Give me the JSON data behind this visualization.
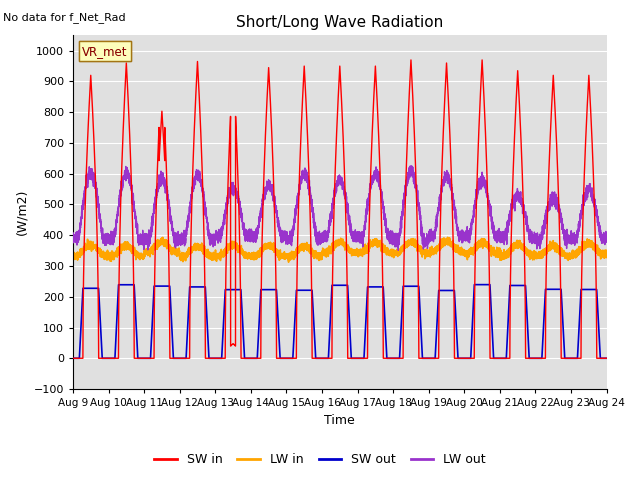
{
  "title": "Short/Long Wave Radiation",
  "xlabel": "Time",
  "ylabel": "(W/m2)",
  "ylim": [
    -100,
    1050
  ],
  "yticks": [
    -100,
    0,
    100,
    200,
    300,
    400,
    500,
    600,
    700,
    800,
    900,
    1000
  ],
  "xtick_labels": [
    "Aug 9",
    "Aug 10",
    "Aug 11",
    "Aug 12",
    "Aug 13",
    "Aug 14",
    "Aug 15",
    "Aug 16",
    "Aug 17",
    "Aug 18",
    "Aug 19",
    "Aug 20",
    "Aug 21",
    "Aug 22",
    "Aug 23",
    "Aug 24"
  ],
  "no_data_label": "No data for f_Net_Rad",
  "legend_label": "VR_met",
  "colors": {
    "SW_in": "#ff0000",
    "LW_in": "#ffa500",
    "SW_out": "#0000cc",
    "LW_out": "#9933cc"
  },
  "bg_color": "#e0e0e0",
  "grid_color": "#ffffff",
  "n_days": 15,
  "n_pts": 480
}
